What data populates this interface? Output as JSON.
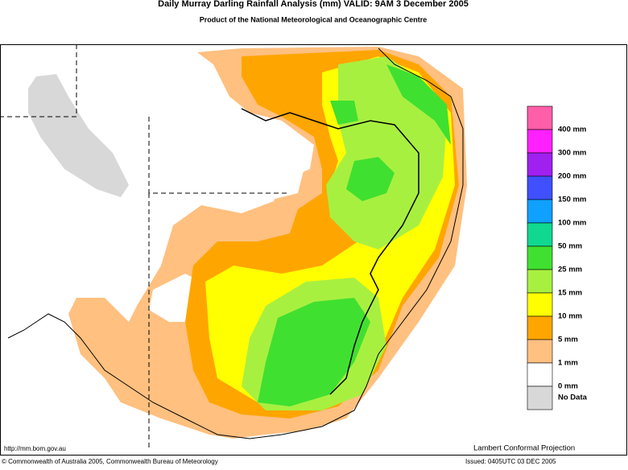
{
  "header": {
    "title": "Daily Murray Darling Rainfall Analysis (mm)  VALID: 9AM  3 December 2005",
    "subtitle": "Product of the National Meteorological and Oceanographic Centre"
  },
  "legend": {
    "colors": [
      "#ff5fa8",
      "#ff20ff",
      "#a020f0",
      "#4050ff",
      "#10a0ff",
      "#10d890",
      "#40e030",
      "#a8f040",
      "#ffff00",
      "#ffa500",
      "#ffc080",
      "#ffffff",
      "#d8d8d8"
    ],
    "labels": [
      "400 mm",
      "300 mm",
      "200 mm",
      "150 mm",
      "100 mm",
      "50 mm",
      "25 mm",
      "15 mm",
      "10 mm",
      "5 mm",
      "1 mm",
      "0 mm",
      "No Data"
    ]
  },
  "footer": {
    "url": "http://mm.bom.gov.au",
    "projection": "Lambert Conformal Projection",
    "copyright": "© Commonwealth of Australia 2005, Commonwealth Bureau of Meteorology",
    "issued": "Issued: 0405UTC 03 DEC 2005"
  }
}
